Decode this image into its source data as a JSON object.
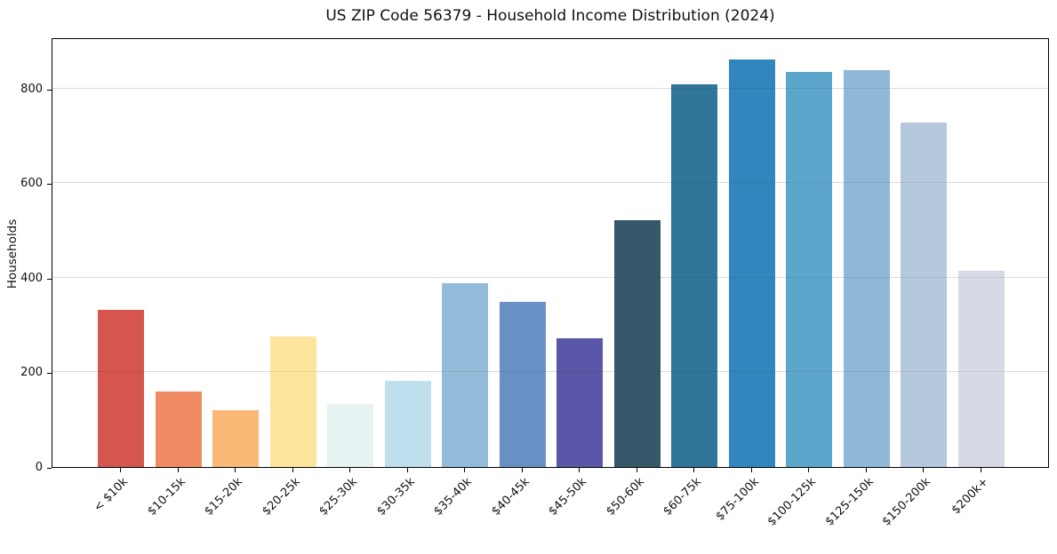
{
  "title": "US ZIP Code 56379 - Household Income Distribution (2024)",
  "chart_data": {
    "type": "bar",
    "title": "US ZIP Code 56379 - Household Income Distribution (2024)",
    "xlabel": "",
    "ylabel": "Households",
    "ylim": [
      0,
      908
    ],
    "yticks": [
      0,
      200,
      400,
      600,
      800
    ],
    "grid": true,
    "legend": false,
    "categories": [
      "< $10k",
      "$10-15k",
      "$15-20k",
      "$20-25k",
      "$25-30k",
      "$30-35k",
      "$35-40k",
      "$40-45k",
      "$45-50k",
      "$50-60k",
      "$60-75k",
      "$75-100k",
      "$100-125k",
      "$125-150k",
      "$150-200k",
      "$200k+"
    ],
    "values": [
      333,
      159,
      121,
      275,
      133,
      182,
      389,
      349,
      272,
      522,
      809,
      861,
      835,
      839,
      727,
      415
    ],
    "bar_colors": [
      "#d6554f",
      "#f08a62",
      "#fbb876",
      "#fde49d",
      "#e7f2f3",
      "#bfdfee",
      "#92bcd9",
      "#6990c5",
      "#5a57a8",
      "#35596a",
      "#2f7698",
      "#3187bd",
      "#5ca6cc",
      "#8fb7d7",
      "#b6c8de",
      "#d7d9e6"
    ],
    "gridline_color": "#ececec",
    "axis_color": "#000000",
    "background_color": "#ffffff"
  }
}
